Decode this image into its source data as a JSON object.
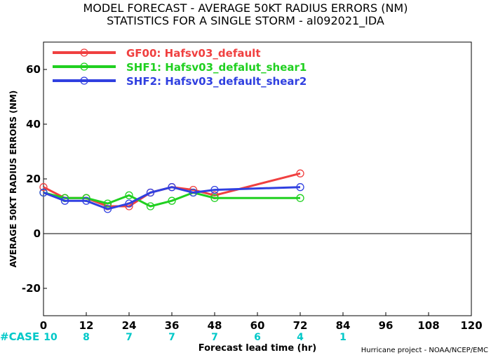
{
  "title": "MODEL FORECAST - AVERAGE 50KT RADIUS ERRORS (NM)",
  "subtitle": "STATISTICS FOR A SINGLE STORM - al092021_IDA",
  "credit": "Hurricane project - NOAA/NCEP/EMC",
  "case_label": "#CASE",
  "case_color": "#00c8c8",
  "chart_data": {
    "type": "line",
    "title": "MODEL FORECAST - AVERAGE 50KT RADIUS ERRORS (NM)",
    "subtitle": "STATISTICS FOR A SINGLE STORM - al092021_IDA",
    "xlabel": "Forecast lead time (hr)",
    "ylabel": "AVERAGE 50KT RADIUS ERRORS (NM)",
    "xlim": [
      0,
      120
    ],
    "ylim": [
      -30,
      70
    ],
    "xticks": [
      0,
      12,
      24,
      36,
      48,
      60,
      72,
      84,
      96,
      108,
      120
    ],
    "yticks": [
      -20,
      0,
      20,
      40,
      60
    ],
    "zero_line": true,
    "legend_position": "top-left",
    "cases": [
      {
        "x": 0,
        "n": "10"
      },
      {
        "x": 12,
        "n": "8"
      },
      {
        "x": 24,
        "n": "7"
      },
      {
        "x": 36,
        "n": "7"
      },
      {
        "x": 48,
        "n": "7"
      },
      {
        "x": 60,
        "n": "6"
      },
      {
        "x": 72,
        "n": "4"
      },
      {
        "x": 84,
        "n": "1"
      }
    ],
    "series": [
      {
        "name": "GF00: Hafsv03_default",
        "color": "#f04040",
        "x": [
          0,
          6,
          12,
          18,
          24,
          30,
          36,
          42,
          48,
          72
        ],
        "y": [
          17,
          13,
          13,
          10,
          10,
          15,
          17,
          16,
          14,
          22
        ]
      },
      {
        "name": "SHF1: Hafsv03_defalut_shear1",
        "color": "#20d020",
        "x": [
          0,
          6,
          12,
          18,
          24,
          30,
          36,
          42,
          48,
          72
        ],
        "y": [
          15,
          13,
          13,
          11,
          14,
          10,
          12,
          15,
          13,
          13
        ]
      },
      {
        "name": "SHF2: Hafsv03_default_shear2",
        "color": "#3040e0",
        "x": [
          0,
          6,
          12,
          18,
          24,
          30,
          36,
          42,
          48,
          72
        ],
        "y": [
          15,
          12,
          12,
          9,
          11,
          15,
          17,
          15,
          16,
          17
        ]
      }
    ]
  }
}
